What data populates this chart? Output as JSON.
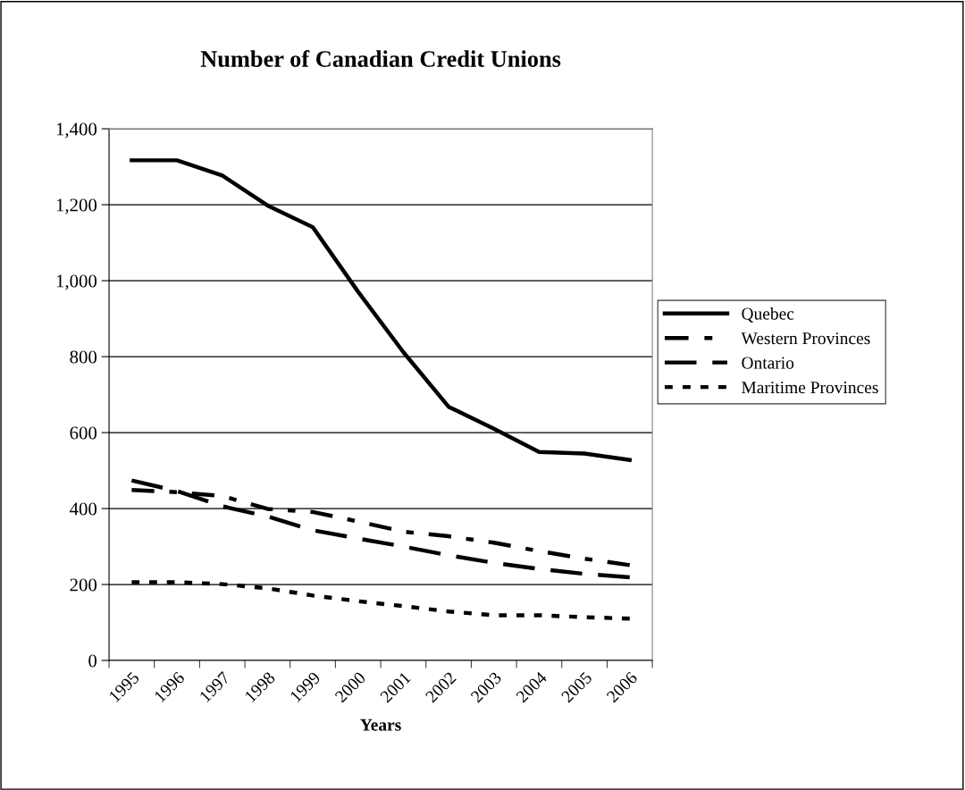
{
  "chart_data": {
    "type": "line",
    "title": "Number of Canadian Credit Unions",
    "xlabel": "Years",
    "categories": [
      "1995",
      "1996",
      "1997",
      "1998",
      "1999",
      "2000",
      "2001",
      "2002",
      "2003",
      "2004",
      "2005",
      "2006"
    ],
    "series": [
      {
        "name": "Quebec",
        "color": "#000000",
        "line_style": "solid",
        "values": [
          1317,
          1317,
          1277,
          1198,
          1141,
          971,
          812,
          668,
          610,
          549,
          545,
          528
        ]
      },
      {
        "name": "Western Provinces",
        "color": "#000000",
        "line_style": "dashdot",
        "values": [
          449,
          443,
          433,
          399,
          391,
          366,
          339,
          327,
          310,
          288,
          268,
          251
        ]
      },
      {
        "name": "Ontario",
        "color": "#000000",
        "line_style": "dashed",
        "values": [
          474,
          446,
          406,
          379,
          343,
          321,
          300,
          277,
          257,
          241,
          228,
          219
        ]
      },
      {
        "name": "Maritime Provinces",
        "color": "#000000",
        "line_style": "dotted",
        "values": [
          206,
          206,
          201,
          190,
          171,
          156,
          143,
          129,
          119,
          119,
          114,
          110
        ]
      }
    ],
    "ylim": [
      0,
      1400
    ],
    "yticks": [
      0,
      200,
      400,
      600,
      800,
      {
        "value": 1000,
        "label": "1,000"
      },
      {
        "value": 1200,
        "label": "1,200"
      },
      {
        "value": 1400,
        "label": "1,400"
      }
    ],
    "grid": "y",
    "legend": "right",
    "marker": "none"
  }
}
